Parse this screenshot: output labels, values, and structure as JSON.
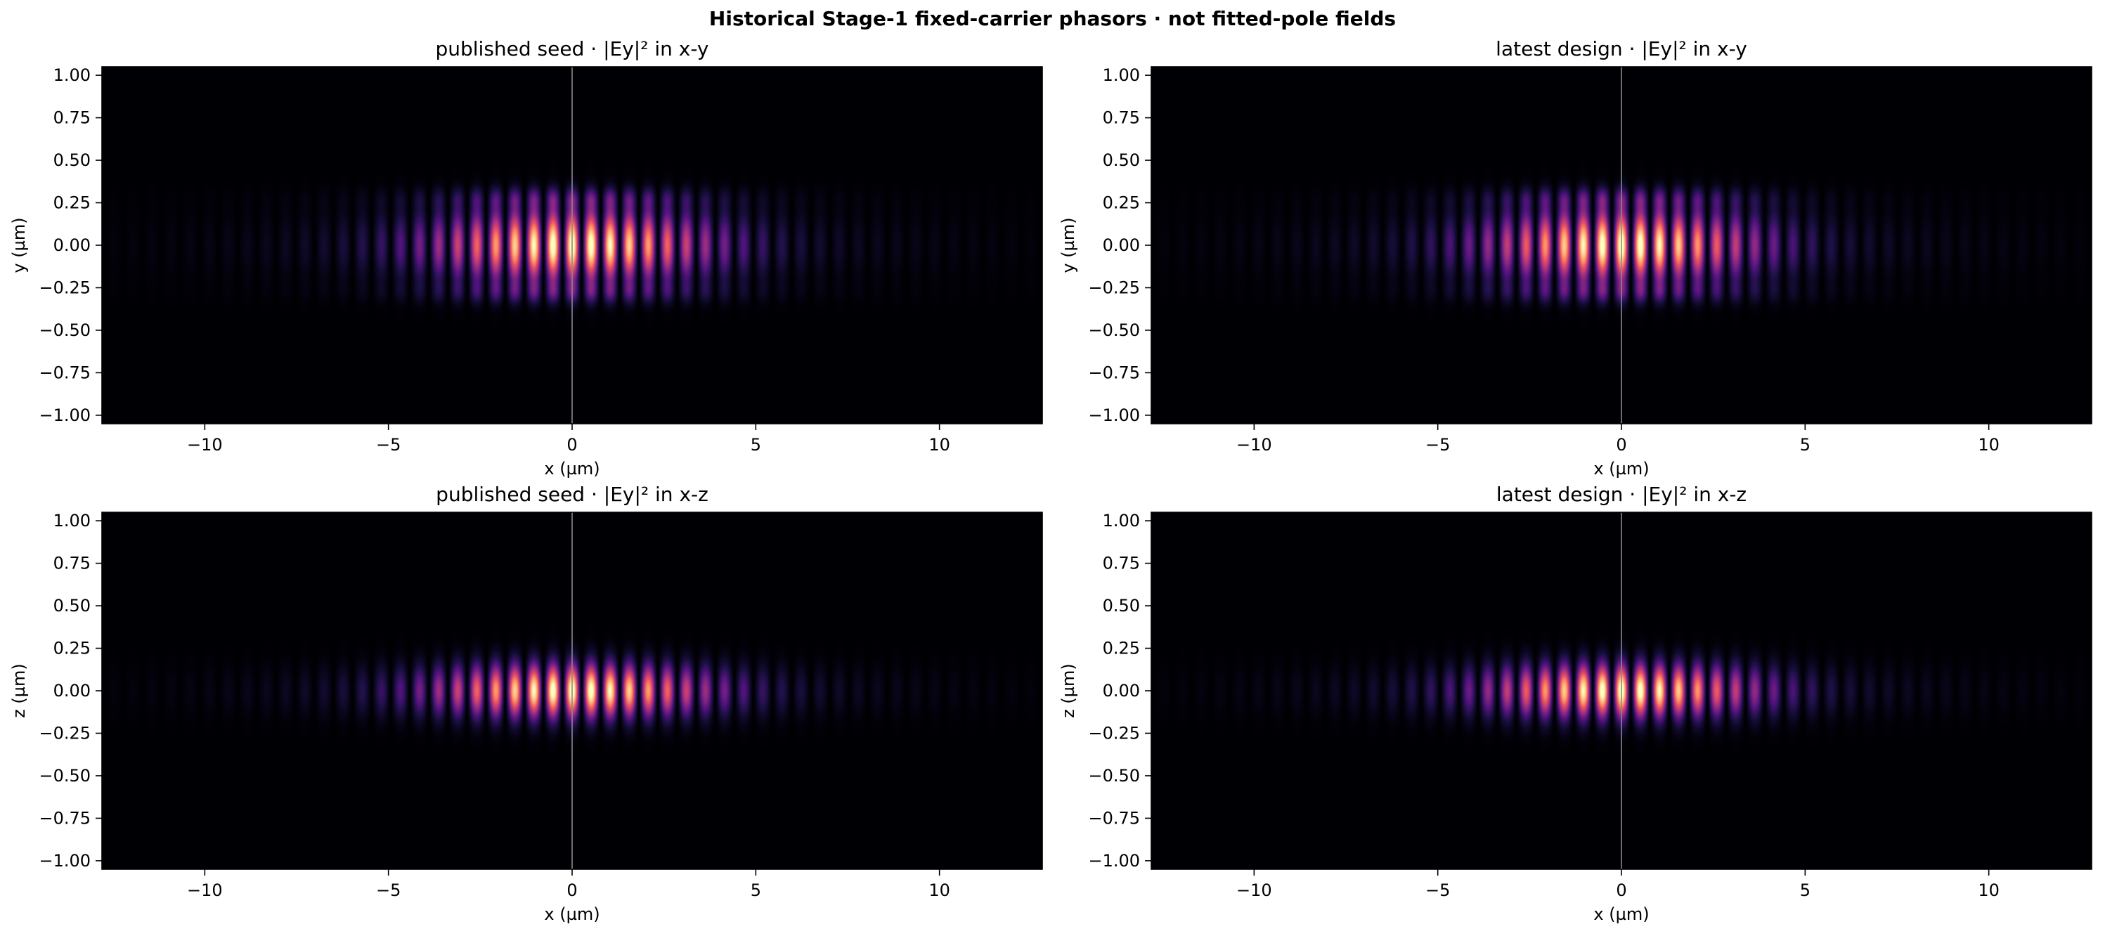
{
  "suptitle": "Historical Stage-1 fixed-carrier phasors · not fitted-pole fields",
  "chart_data": [
    {
      "type": "heatmap",
      "title": "published seed · |Ey|² in x-y",
      "xlabel": "x (µm)",
      "ylabel": "y (µm)",
      "xlim": [
        -12.8,
        12.8
      ],
      "ylim": [
        -1.05,
        1.05
      ],
      "xticks": [
        -10,
        -5,
        0,
        5,
        10
      ],
      "yticks": [
        1.0,
        0.75,
        0.5,
        0.25,
        0.0,
        -0.25,
        -0.5,
        -0.75,
        -1.0
      ],
      "ytick_labels": [
        "1.00",
        "0.75",
        "0.50",
        "0.25",
        "0.00",
        "−0.25",
        "−0.50",
        "−0.75",
        "−1.00"
      ],
      "xtick_labels": [
        "−10",
        "−5",
        "0",
        "5",
        "10"
      ],
      "colormap": "magma",
      "centerline_x": 0,
      "field": {
        "envelope_width_um": 3.2,
        "transverse_width_um": 0.17,
        "fringe_period_um": 0.52,
        "side_lobes": true,
        "center_x_um": 0.0
      }
    },
    {
      "type": "heatmap",
      "title": "latest design · |Ey|² in x-y",
      "xlabel": "x (µm)",
      "ylabel": "y (µm)",
      "xlim": [
        -12.8,
        12.8
      ],
      "ylim": [
        -1.05,
        1.05
      ],
      "xticks": [
        -10,
        -5,
        0,
        5,
        10
      ],
      "yticks": [
        1.0,
        0.75,
        0.5,
        0.25,
        0.0,
        -0.25,
        -0.5,
        -0.75,
        -1.0
      ],
      "ytick_labels": [
        "1.00",
        "0.75",
        "0.50",
        "0.25",
        "0.00",
        "−0.25",
        "−0.50",
        "−0.75",
        "−1.00"
      ],
      "xtick_labels": [
        "−10",
        "−5",
        "0",
        "5",
        "10"
      ],
      "colormap": "magma",
      "centerline_x": 0,
      "field": {
        "envelope_width_um": 3.1,
        "transverse_width_um": 0.17,
        "fringe_period_um": 0.52,
        "side_lobes": true,
        "center_x_um": 0.0
      }
    },
    {
      "type": "heatmap",
      "title": "published seed · |Ey|² in x-z",
      "xlabel": "x (µm)",
      "ylabel": "z (µm)",
      "xlim": [
        -12.8,
        12.8
      ],
      "ylim": [
        -1.05,
        1.05
      ],
      "xticks": [
        -10,
        -5,
        0,
        5,
        10
      ],
      "yticks": [
        1.0,
        0.75,
        0.5,
        0.25,
        0.0,
        -0.25,
        -0.5,
        -0.75,
        -1.0
      ],
      "ytick_labels": [
        "1.00",
        "0.75",
        "0.50",
        "0.25",
        "0.00",
        "−0.25",
        "−0.50",
        "−0.75",
        "−1.00"
      ],
      "xtick_labels": [
        "−10",
        "−5",
        "0",
        "5",
        "10"
      ],
      "colormap": "magma",
      "centerline_x": 0,
      "field": {
        "envelope_width_um": 3.2,
        "transverse_width_um": 0.13,
        "fringe_period_um": 0.52,
        "side_lobes": false,
        "center_x_um": 0.0
      }
    },
    {
      "type": "heatmap",
      "title": "latest design · |Ey|² in x-z",
      "xlabel": "x (µm)",
      "ylabel": "z (µm)",
      "xlim": [
        -12.8,
        12.8
      ],
      "ylim": [
        -1.05,
        1.05
      ],
      "xticks": [
        -10,
        -5,
        0,
        5,
        10
      ],
      "yticks": [
        1.0,
        0.75,
        0.5,
        0.25,
        0.0,
        -0.25,
        -0.5,
        -0.75,
        -1.0
      ],
      "ytick_labels": [
        "1.00",
        "0.75",
        "0.50",
        "0.25",
        "0.00",
        "−0.25",
        "−0.50",
        "−0.75",
        "−1.00"
      ],
      "xtick_labels": [
        "−10",
        "−5",
        "0",
        "5",
        "10"
      ],
      "colormap": "magma",
      "centerline_x": 0,
      "field": {
        "envelope_width_um": 3.1,
        "transverse_width_um": 0.13,
        "fringe_period_um": 0.52,
        "side_lobes": false,
        "center_x_um": 0.0
      }
    }
  ]
}
